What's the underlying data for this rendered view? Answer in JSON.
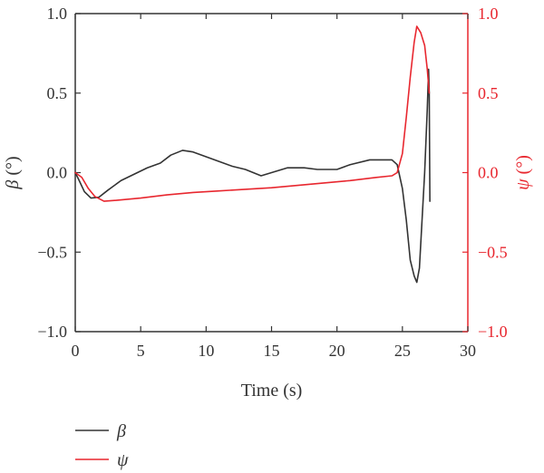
{
  "chart_data": {
    "type": "line",
    "xlabel": "Time (s)",
    "ylabel_left": "β (°)",
    "ylabel_left_symbol": "β",
    "ylabel_left_unit": " (°)",
    "ylabel_right": "ψ (°)",
    "ylabel_right_symbol": "ψ",
    "ylabel_right_unit": " (°)",
    "xlim": [
      0,
      30
    ],
    "ylim_left": [
      -1.0,
      1.0
    ],
    "ylim_right": [
      -1.0,
      1.0
    ],
    "x_ticks": [
      0,
      5,
      10,
      15,
      20,
      25,
      30
    ],
    "x_tick_labels": [
      "0",
      "5",
      "10",
      "15",
      "20",
      "25",
      "30"
    ],
    "y_ticks_left": [
      1.0,
      0.5,
      0.0,
      -0.5,
      -1.0
    ],
    "y_tick_labels_left": [
      "1.0",
      "0.5",
      "0.0",
      "−0.5",
      "−1.0"
    ],
    "y_ticks_right": [
      1.0,
      0.5,
      0.0,
      -0.5,
      -1.0
    ],
    "y_tick_labels_right": [
      "1.0",
      "0.5",
      "0.0",
      "−0.5",
      "−1.0"
    ],
    "grid": false,
    "legend_position": "bottom-left",
    "series": [
      {
        "name": "β",
        "axis": "left",
        "color": "#333333",
        "points": [
          [
            0,
            0.0
          ],
          [
            0.3,
            -0.05
          ],
          [
            0.7,
            -0.12
          ],
          [
            1.2,
            -0.16
          ],
          [
            1.8,
            -0.155
          ],
          [
            2.5,
            -0.11
          ],
          [
            3.5,
            -0.05
          ],
          [
            4.5,
            -0.01
          ],
          [
            5.5,
            0.03
          ],
          [
            6.5,
            0.06
          ],
          [
            7.3,
            0.11
          ],
          [
            8.2,
            0.14
          ],
          [
            9.0,
            0.13
          ],
          [
            10.0,
            0.1
          ],
          [
            11.0,
            0.07
          ],
          [
            12.0,
            0.04
          ],
          [
            13.0,
            0.02
          ],
          [
            14.2,
            -0.02
          ],
          [
            15.0,
            0.0
          ],
          [
            16.2,
            0.03
          ],
          [
            17.5,
            0.03
          ],
          [
            18.5,
            0.02
          ],
          [
            20.0,
            0.02
          ],
          [
            21.0,
            0.05
          ],
          [
            22.5,
            0.08
          ],
          [
            23.5,
            0.08
          ],
          [
            24.2,
            0.08
          ],
          [
            24.6,
            0.05
          ],
          [
            25.0,
            -0.1
          ],
          [
            25.3,
            -0.3
          ],
          [
            25.6,
            -0.55
          ],
          [
            25.9,
            -0.65
          ],
          [
            26.1,
            -0.69
          ],
          [
            26.3,
            -0.6
          ],
          [
            26.5,
            -0.3
          ],
          [
            26.7,
            0.0
          ],
          [
            26.9,
            0.4
          ],
          [
            27.0,
            0.65
          ],
          [
            27.05,
            0.5
          ],
          [
            27.1,
            -0.18
          ]
        ]
      },
      {
        "name": "ψ",
        "axis": "right",
        "color": "#e8272f",
        "points": [
          [
            0,
            0.0
          ],
          [
            0.5,
            -0.03
          ],
          [
            1.0,
            -0.1
          ],
          [
            1.5,
            -0.15
          ],
          [
            2.2,
            -0.18
          ],
          [
            3.0,
            -0.175
          ],
          [
            5.0,
            -0.16
          ],
          [
            7.0,
            -0.14
          ],
          [
            9.0,
            -0.125
          ],
          [
            11.0,
            -0.115
          ],
          [
            13.0,
            -0.105
          ],
          [
            15.0,
            -0.095
          ],
          [
            17.0,
            -0.08
          ],
          [
            19.0,
            -0.065
          ],
          [
            21.0,
            -0.05
          ],
          [
            23.0,
            -0.03
          ],
          [
            24.2,
            -0.02
          ],
          [
            24.6,
            0.0
          ],
          [
            25.0,
            0.12
          ],
          [
            25.3,
            0.35
          ],
          [
            25.6,
            0.6
          ],
          [
            25.9,
            0.82
          ],
          [
            26.1,
            0.92
          ],
          [
            26.4,
            0.88
          ],
          [
            26.7,
            0.8
          ],
          [
            26.9,
            0.65
          ],
          [
            27.0,
            0.55
          ],
          [
            27.05,
            0.5
          ]
        ]
      }
    ]
  }
}
